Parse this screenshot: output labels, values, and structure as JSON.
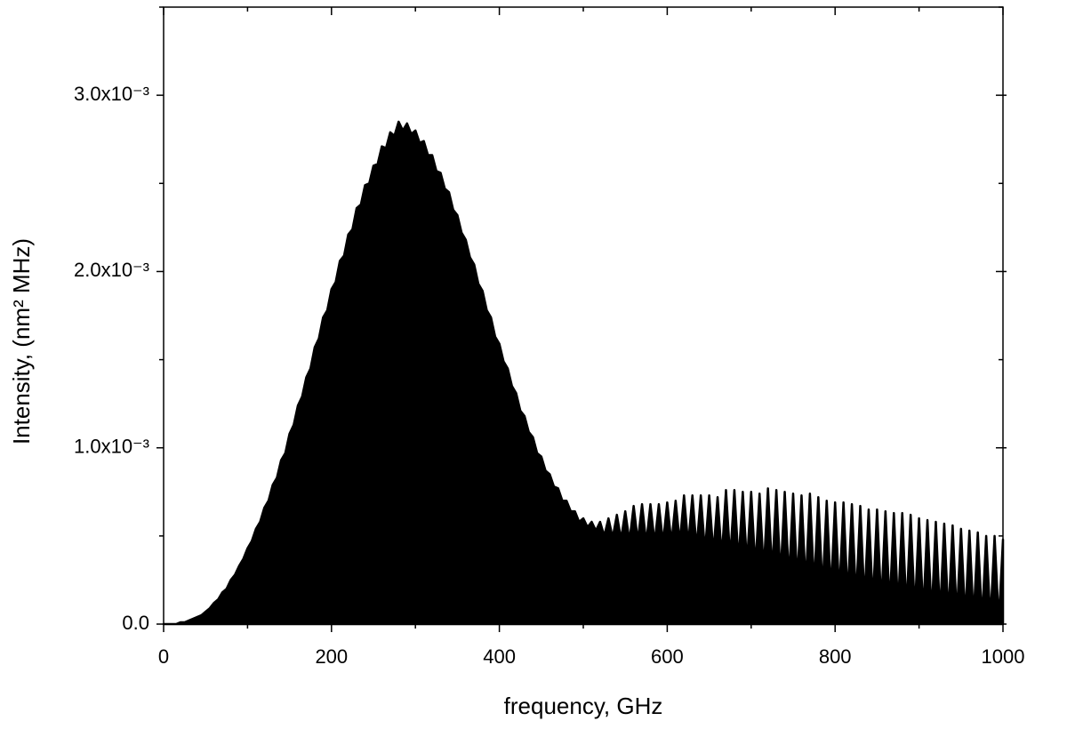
{
  "chart_data": {
    "type": "area",
    "x_label": "frequency, GHz",
    "y_label": "Intensity, (nm² MHz)",
    "color": "#000000",
    "xlim": [
      0,
      1000
    ],
    "xticks": [
      0,
      200,
      400,
      600,
      800,
      1000
    ],
    "xminorticks": [
      100,
      300,
      500,
      700,
      900
    ],
    "ylim": [
      0,
      0.0035
    ],
    "yticks": [
      {
        "value": 0,
        "label": "0.0"
      },
      {
        "value": 0.001,
        "label": "1.0x10⁻³"
      },
      {
        "value": 0.002,
        "label": "2.0x10⁻³"
      },
      {
        "value": 0.003,
        "label": "3.0x10⁻³"
      }
    ],
    "yminorticks": [
      0.0005,
      0.0015,
      0.0025,
      0.0035
    ],
    "x": [
      0,
      5,
      10,
      15,
      20,
      25,
      30,
      35,
      40,
      45,
      50,
      55,
      60,
      65,
      70,
      75,
      80,
      85,
      90,
      95,
      100,
      105,
      110,
      115,
      120,
      125,
      130,
      135,
      140,
      145,
      150,
      155,
      160,
      165,
      170,
      175,
      180,
      185,
      190,
      195,
      200,
      205,
      210,
      215,
      220,
      225,
      230,
      235,
      240,
      245,
      250,
      255,
      260,
      265,
      270,
      275,
      280,
      285,
      290,
      295,
      300,
      305,
      310,
      315,
      320,
      325,
      330,
      335,
      340,
      345,
      350,
      355,
      360,
      365,
      370,
      375,
      380,
      385,
      390,
      395,
      400,
      405,
      410,
      415,
      420,
      425,
      430,
      435,
      440,
      445,
      450,
      455,
      460,
      465,
      470,
      475,
      480,
      485,
      490,
      495,
      500,
      505,
      510,
      515,
      520,
      525,
      530,
      535,
      540,
      545,
      550,
      555,
      560,
      565,
      570,
      575,
      580,
      585,
      590,
      595,
      600,
      605,
      610,
      615,
      620,
      625,
      630,
      635,
      640,
      645,
      650,
      655,
      660,
      665,
      670,
      675,
      680,
      685,
      690,
      695,
      700,
      705,
      710,
      715,
      720,
      725,
      730,
      735,
      740,
      745,
      750,
      755,
      760,
      765,
      770,
      775,
      780,
      785,
      790,
      795,
      800,
      805,
      810,
      815,
      820,
      825,
      830,
      835,
      840,
      845,
      850,
      855,
      860,
      865,
      870,
      875,
      880,
      885,
      890,
      895,
      900,
      905,
      910,
      915,
      920,
      925,
      930,
      935,
      940,
      945,
      950,
      955,
      960,
      965,
      970,
      975,
      980,
      985,
      990,
      995,
      1000
    ],
    "values": [
      0,
      0,
      0,
      0,
      1e-05,
      1e-05,
      2e-05,
      3e-05,
      4e-05,
      5e-05,
      7e-05,
      9e-05,
      0.00012,
      0.00014,
      0.00018,
      0.0002,
      0.00025,
      0.00028,
      0.00033,
      0.00037,
      0.00043,
      0.00047,
      0.00054,
      0.00058,
      0.00066,
      0.0007,
      0.00079,
      0.00083,
      0.00093,
      0.00097,
      0.00108,
      0.00113,
      0.00124,
      0.00129,
      0.0014,
      0.00145,
      0.00157,
      0.00162,
      0.00174,
      0.00178,
      0.0019,
      0.00194,
      0.00206,
      0.00209,
      0.00221,
      0.00224,
      0.00236,
      0.00238,
      0.00249,
      0.0025,
      0.0026,
      0.00261,
      0.00271,
      0.0027,
      0.00279,
      0.00277,
      0.00285,
      0.0028,
      0.00284,
      0.00278,
      0.0028,
      0.00273,
      0.00274,
      0.00266,
      0.00266,
      0.00257,
      0.00256,
      0.00247,
      0.00245,
      0.00235,
      0.00232,
      0.00222,
      0.00218,
      0.00208,
      0.00204,
      0.00193,
      0.00189,
      0.00178,
      0.00174,
      0.00163,
      0.00159,
      0.00149,
      0.00145,
      0.00135,
      0.00131,
      0.00121,
      0.00118,
      0.00109,
      0.00106,
      0.00097,
      0.00095,
      0.00087,
      0.00085,
      0.00078,
      0.00077,
      0.0007,
      0.0007,
      0.00064,
      0.00064,
      0.00058,
      0.0006,
      0.00055,
      0.00058,
      0.00053,
      0.00058,
      0.0005,
      0.0006,
      0.00049,
      0.00062,
      0.00048,
      0.00064,
      0.00047,
      0.00067,
      0.00047,
      0.00068,
      0.00046,
      0.00068,
      0.00046,
      0.00068,
      0.00046,
      0.00069,
      0.00046,
      0.0007,
      0.00046,
      0.00073,
      0.00045,
      0.00073,
      0.00043,
      0.00073,
      0.00041,
      0.00073,
      0.0004,
      0.00072,
      0.00038,
      0.00076,
      0.00037,
      0.00076,
      0.00035,
      0.00075,
      0.00034,
      0.00075,
      0.00032,
      0.00074,
      0.0003,
      0.00077,
      0.00029,
      0.00076,
      0.00027,
      0.00075,
      0.00025,
      0.00074,
      0.00024,
      0.00073,
      0.00022,
      0.00074,
      0.00021,
      0.00072,
      0.00019,
      0.0007,
      0.00018,
      0.00069,
      0.00017,
      0.00069,
      0.00015,
      0.00068,
      0.00014,
      0.00067,
      0.00013,
      0.00065,
      0.00012,
      0.00065,
      0.00011,
      0.00064,
      0.0001,
      0.00063,
      9e-05,
      0.00063,
      8e-05,
      0.00062,
      7e-05,
      0.0006,
      6e-05,
      0.00059,
      5e-05,
      0.00058,
      5e-05,
      0.00057,
      4e-05,
      0.00056,
      4e-05,
      0.00054,
      3e-05,
      0.00053,
      3e-05,
      0.00052,
      2e-05,
      0.0005,
      2e-05,
      0.0005,
      1e-05,
      0.00048
    ]
  }
}
